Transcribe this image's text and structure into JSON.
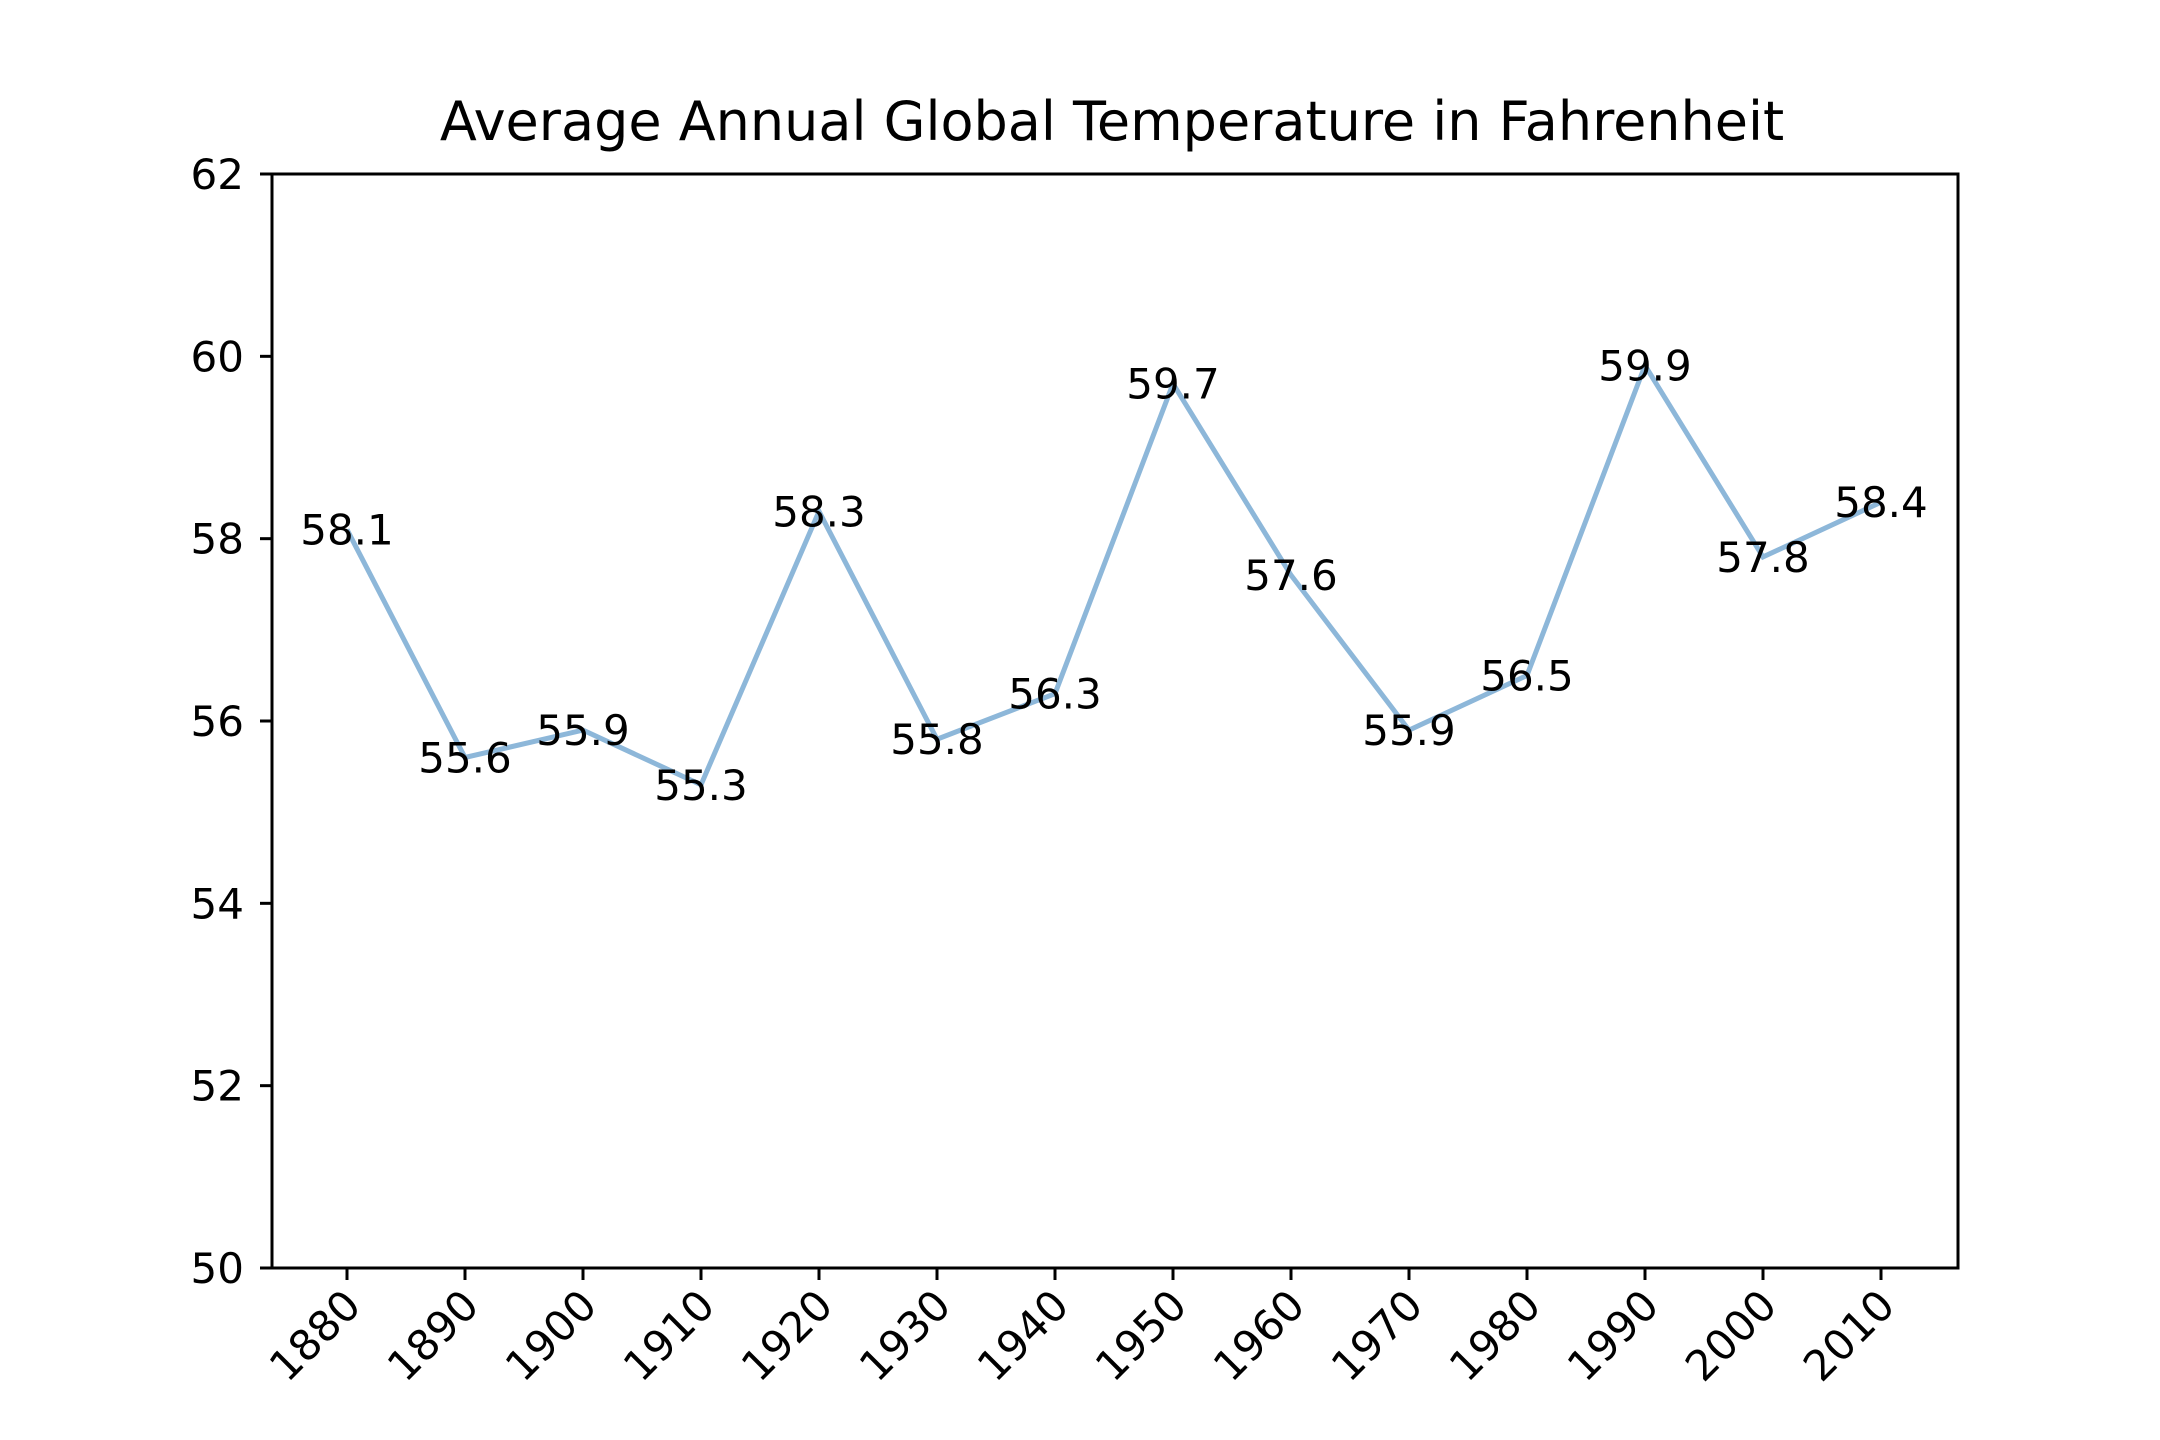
{
  "chart_data": {
    "type": "line",
    "title": "Average Annual Global Temperature in Fahrenheit",
    "xlabel": "",
    "ylabel": "",
    "categories": [
      "1880",
      "1890",
      "1900",
      "1910",
      "1920",
      "1930",
      "1940",
      "1950",
      "1960",
      "1970",
      "1980",
      "1990",
      "2000",
      "2010"
    ],
    "values": [
      58.1,
      55.6,
      55.9,
      55.3,
      58.3,
      55.8,
      56.3,
      59.7,
      57.6,
      55.9,
      56.5,
      59.9,
      57.8,
      58.4
    ],
    "data_labels": [
      "58.1",
      "55.6",
      "55.9",
      "55.3",
      "58.3",
      "55.8",
      "56.3",
      "59.7",
      "57.6",
      "55.9",
      "56.5",
      "59.9",
      "57.8",
      "58.4"
    ],
    "ylim": [
      50,
      62
    ],
    "yticks": [
      "50",
      "52",
      "54",
      "56",
      "58",
      "60",
      "62"
    ],
    "xtick_rotation": 45,
    "grid": false,
    "legend": "none",
    "line_color": "#8db7d9"
  }
}
